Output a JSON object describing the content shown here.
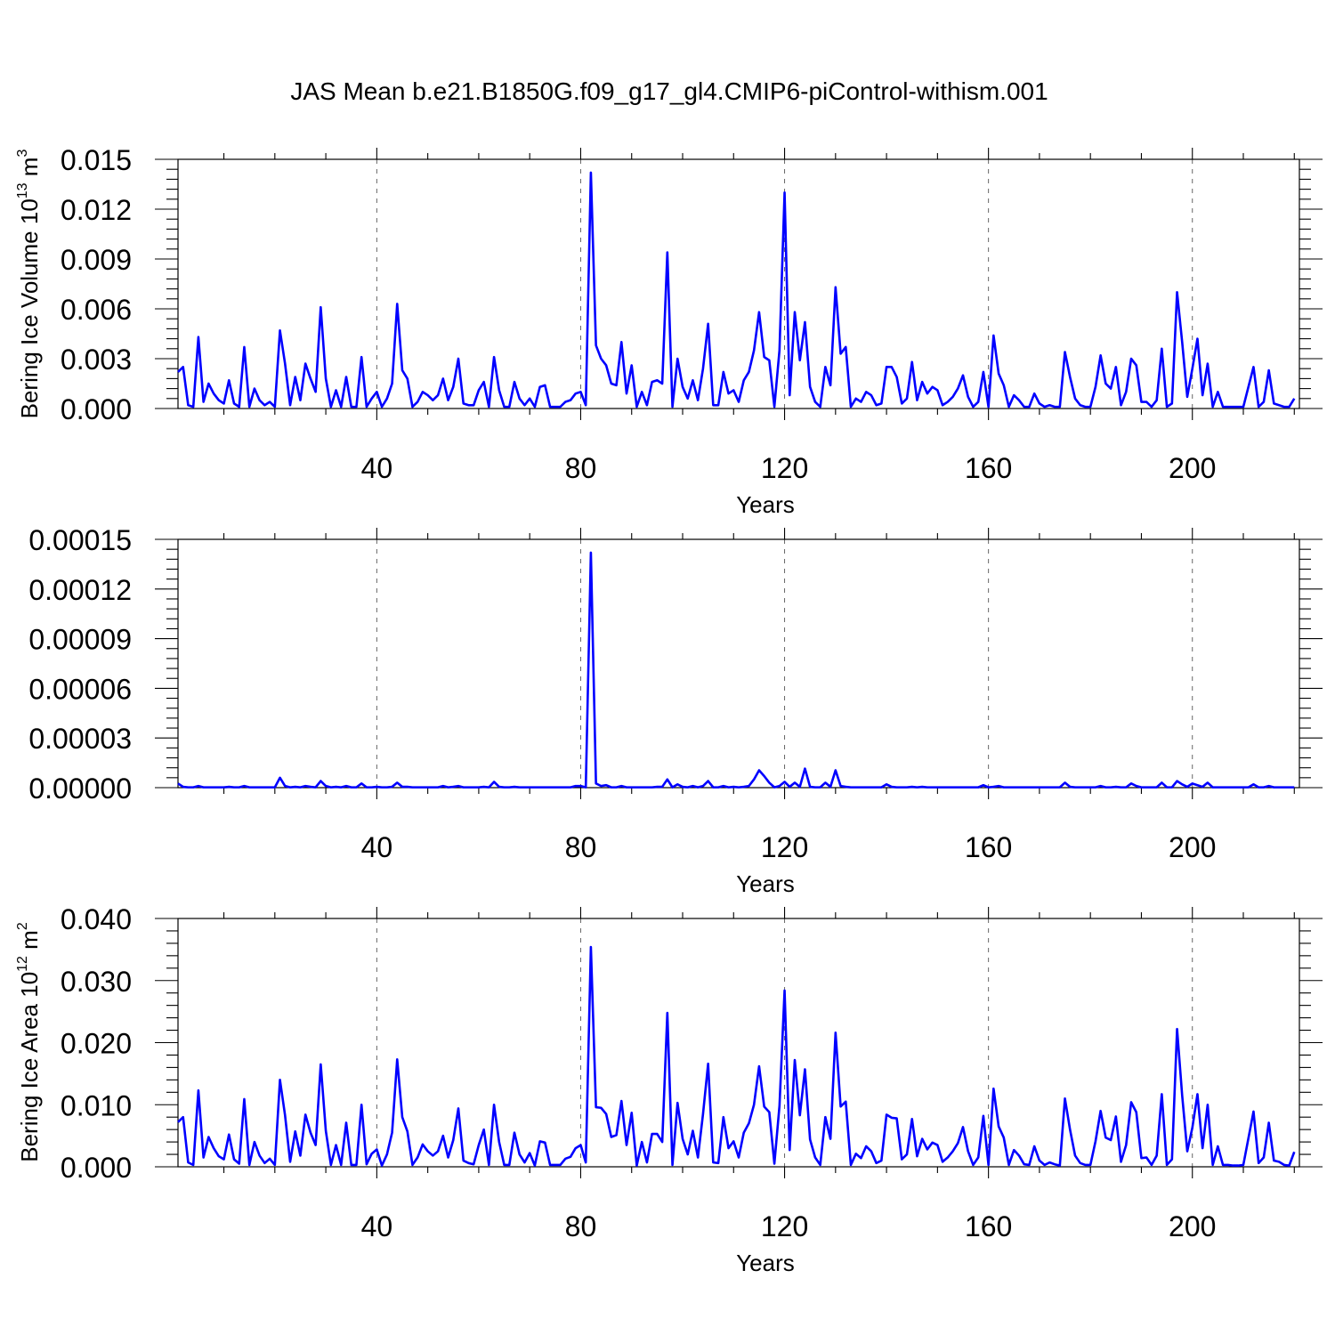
{
  "title": "JAS Mean b.e21.B1850G.f09_g17_gl4.CMIP6-piControl-withism.001",
  "colors": {
    "series": "#0000ff",
    "frame": "#000000",
    "grid": "#666666"
  },
  "chart_data": [
    {
      "type": "line",
      "xlabel": "Years",
      "ylabel": "Bering Ice Volume 10",
      "ylabel_sup": "13",
      "ylabel_unit": " m",
      "ylabel_unit_sup": "3",
      "xlim": [
        1,
        221
      ],
      "ylim": [
        0,
        0.015
      ],
      "xticks": [
        40,
        80,
        120,
        160,
        200
      ],
      "xtick_labels": [
        "40",
        "80",
        "120",
        "160",
        "200"
      ],
      "yticks": [
        0,
        0.003,
        0.006,
        0.009,
        0.012,
        0.015
      ],
      "ytick_labels": [
        "0.000",
        "0.003",
        "0.006",
        "0.009",
        "0.012",
        "0.015"
      ],
      "grid": "vertical dashed at x ticks",
      "x_start": 1,
      "values": [
        0.0022,
        0.0025,
        0.0002,
        0.0001,
        0.0043,
        0.0004,
        0.0015,
        0.0009,
        0.0005,
        0.0003,
        0.0017,
        0.0003,
        0.0001,
        0.0037,
        0.0001,
        0.0012,
        0.0005,
        0.0002,
        0.0004,
        0.0001,
        0.0047,
        0.0027,
        0.0002,
        0.0019,
        0.0005,
        0.0027,
        0.0018,
        0.001,
        0.0061,
        0.0018,
        0.0001,
        0.0011,
        0.0001,
        0.0019,
        0.0001,
        0.0001,
        0.0031,
        0.0001,
        0.0006,
        0.001,
        0.0001,
        0.0006,
        0.0015,
        0.0063,
        0.0023,
        0.0018,
        0.0001,
        0.0004,
        0.001,
        0.0008,
        0.0005,
        0.0008,
        0.0018,
        0.0005,
        0.0013,
        0.003,
        0.0003,
        0.0002,
        0.0002,
        0.0011,
        0.0016,
        0.0001,
        0.0031,
        0.0011,
        0.0001,
        0.0001,
        0.0016,
        0.0006,
        0.0002,
        0.0006,
        0.0001,
        0.0013,
        0.0014,
        0.0001,
        0.0001,
        0.0001,
        0.0004,
        0.0005,
        0.0009,
        0.001,
        0.0002,
        0.0142,
        0.0038,
        0.003,
        0.0026,
        0.0015,
        0.0014,
        0.004,
        0.0009,
        0.0026,
        0.0001,
        0.001,
        0.0002,
        0.0016,
        0.0017,
        0.0015,
        0.0094,
        0.0001,
        0.003,
        0.0013,
        0.0006,
        0.0017,
        0.0005,
        0.0024,
        0.0051,
        0.0002,
        0.0002,
        0.0022,
        0.0009,
        0.0011,
        0.0004,
        0.0017,
        0.0022,
        0.0035,
        0.0058,
        0.0031,
        0.0029,
        0.0001,
        0.0035,
        0.013,
        0.0008,
        0.0058,
        0.0029,
        0.0052,
        0.0013,
        0.0004,
        0.0001,
        0.0025,
        0.0014,
        0.0073,
        0.0033,
        0.0037,
        0.0001,
        0.0006,
        0.0004,
        0.001,
        0.0008,
        0.0002,
        0.0003,
        0.0025,
        0.0025,
        0.0019,
        0.0003,
        0.0006,
        0.0028,
        0.0005,
        0.0016,
        0.0009,
        0.0013,
        0.0011,
        0.0002,
        0.0004,
        0.0007,
        0.0012,
        0.002,
        0.0007,
        0.0001,
        0.0004,
        0.0022,
        0.0001,
        0.0044,
        0.0021,
        0.0014,
        0.0001,
        0.0008,
        0.0005,
        0.0001,
        0.0001,
        0.0009,
        0.0003,
        0.0001,
        0.0002,
        0.0001,
        0.0001,
        0.0034,
        0.0019,
        0.0006,
        0.0002,
        0.0001,
        0.0001,
        0.0013,
        0.0032,
        0.0015,
        0.0012,
        0.0025,
        0.0002,
        0.001,
        0.003,
        0.0026,
        0.0004,
        0.0004,
        0.0001,
        0.0005,
        0.0036,
        0.0001,
        0.0003,
        0.007,
        0.004,
        0.0007,
        0.0024,
        0.0042,
        0.0008,
        0.0027,
        0.0001,
        0.001,
        0.0001,
        0.0001,
        0.0001,
        0.0001,
        0.0001,
        0.0013,
        0.0025,
        0.0001,
        0.0004,
        0.0023,
        0.0003,
        0.0002,
        0.0001,
        0.0001,
        0.0006
      ]
    },
    {
      "type": "line",
      "xlabel": "Years",
      "ylabel": "",
      "xlim": [
        1,
        221
      ],
      "ylim": [
        0,
        0.00015
      ],
      "xticks": [
        40,
        80,
        120,
        160,
        200
      ],
      "xtick_labels": [
        "40",
        "80",
        "120",
        "160",
        "200"
      ],
      "yticks": [
        0,
        3e-05,
        6e-05,
        9e-05,
        0.00012,
        0.00015
      ],
      "ytick_labels": [
        "0.00000",
        "0.00003",
        "0.00006",
        "0.00009",
        "0.00012",
        "0.00015"
      ],
      "grid": "vertical dashed at x ticks",
      "x_start": 1,
      "values": [
        2.5e-06,
        5e-07,
        2e-07,
        2e-07,
        1e-06,
        2e-07,
        2e-07,
        2e-07,
        2e-07,
        2e-07,
        5e-07,
        2e-07,
        2e-07,
        1e-06,
        2e-07,
        2e-07,
        2e-07,
        2e-07,
        2e-07,
        2e-07,
        6e-06,
        1e-06,
        2e-07,
        5e-07,
        2e-07,
        1e-06,
        5e-07,
        2e-07,
        4e-06,
        1e-06,
        2e-07,
        5e-07,
        2e-07,
        1e-06,
        2e-07,
        2e-07,
        2.5e-06,
        2e-07,
        2e-07,
        5e-07,
        2e-07,
        2e-07,
        5e-07,
        3e-06,
        5e-07,
        5e-07,
        2e-07,
        2e-07,
        2e-07,
        2e-07,
        2e-07,
        2e-07,
        1e-06,
        2e-07,
        5e-07,
        1e-06,
        2e-07,
        2e-07,
        2e-07,
        2e-07,
        5e-07,
        2e-07,
        3.5e-06,
        5e-07,
        2e-07,
        2e-07,
        5e-07,
        2e-07,
        2e-07,
        2e-07,
        2e-07,
        2e-07,
        2e-07,
        2e-07,
        2e-07,
        2e-07,
        2e-07,
        2e-07,
        1e-06,
        1e-06,
        2e-07,
        0.000142,
        2.5e-06,
        1e-06,
        1.5e-06,
        2e-07,
        2e-07,
        1e-06,
        2e-07,
        2e-07,
        2e-07,
        2e-07,
        2e-07,
        2e-07,
        5e-07,
        5e-07,
        5e-06,
        2e-07,
        2e-06,
        5e-07,
        2e-07,
        1e-06,
        2e-07,
        1e-06,
        4e-06,
        2e-07,
        2e-07,
        1e-06,
        2e-07,
        5e-07,
        2e-07,
        5e-07,
        1e-06,
        5e-06,
        1.05e-05,
        7e-06,
        3e-06,
        2e-07,
        1e-06,
        3.5e-06,
        5e-07,
        3e-06,
        5e-07,
        1.15e-05,
        5e-07,
        2e-07,
        2e-07,
        3e-06,
        5e-07,
        1.05e-05,
        1e-06,
        5e-07,
        2e-07,
        2e-07,
        2e-07,
        2e-07,
        2e-07,
        2e-07,
        2e-07,
        2e-06,
        5e-07,
        2e-07,
        2e-07,
        2e-07,
        5e-07,
        2e-07,
        5e-07,
        2e-07,
        2e-07,
        2e-07,
        2e-07,
        2e-07,
        2e-07,
        2e-07,
        2e-07,
        2e-07,
        2e-07,
        2e-07,
        1.5e-06,
        2e-07,
        5e-07,
        1e-06,
        2e-07,
        2e-07,
        2e-07,
        2e-07,
        2e-07,
        2e-07,
        2e-07,
        2e-07,
        2e-07,
        2e-07,
        2e-07,
        2e-07,
        3e-06,
        5e-07,
        2e-07,
        2e-07,
        2e-07,
        2e-07,
        2e-07,
        1e-06,
        2e-07,
        2e-07,
        5e-07,
        2e-07,
        2e-07,
        2.5e-06,
        1e-06,
        2e-07,
        2e-07,
        2e-07,
        2e-07,
        3e-06,
        2e-07,
        2e-07,
        4e-06,
        2e-06,
        5e-07,
        2.5e-06,
        1.5e-06,
        5e-07,
        3e-06,
        2e-07,
        2e-07,
        2e-07,
        2e-07,
        2e-07,
        2e-07,
        2e-07,
        2e-07,
        2e-06,
        2e-07,
        2e-07,
        1e-06,
        2e-07,
        2e-07,
        2e-07,
        2e-07,
        2e-07
      ]
    },
    {
      "type": "line",
      "xlabel": "Years",
      "ylabel": "Bering Ice Area 10",
      "ylabel_sup": "12",
      "ylabel_unit": " m",
      "ylabel_unit_sup": "2",
      "xlim": [
        1,
        221
      ],
      "ylim": [
        0,
        0.04
      ],
      "xticks": [
        40,
        80,
        120,
        160,
        200
      ],
      "xtick_labels": [
        "40",
        "80",
        "120",
        "160",
        "200"
      ],
      "yticks": [
        0,
        0.01,
        0.02,
        0.03,
        0.04
      ],
      "ytick_labels": [
        "0.000",
        "0.010",
        "0.020",
        "0.030",
        "0.040"
      ],
      "grid": "vertical dashed at x ticks",
      "x_start": 1,
      "values": [
        0.0072,
        0.008,
        0.0007,
        0.0003,
        0.0123,
        0.0015,
        0.0048,
        0.003,
        0.0017,
        0.0012,
        0.0052,
        0.0012,
        0.0005,
        0.0109,
        0.0003,
        0.004,
        0.0018,
        0.0006,
        0.0013,
        0.0003,
        0.014,
        0.0083,
        0.0008,
        0.0057,
        0.0018,
        0.0084,
        0.0055,
        0.0035,
        0.0165,
        0.0058,
        0.0003,
        0.0035,
        0.0003,
        0.0071,
        0.0003,
        0.0003,
        0.01,
        0.0004,
        0.0021,
        0.0028,
        0.0002,
        0.002,
        0.0055,
        0.0173,
        0.008,
        0.0057,
        0.0003,
        0.0015,
        0.0036,
        0.0025,
        0.0018,
        0.0025,
        0.005,
        0.0015,
        0.0043,
        0.0094,
        0.001,
        0.0006,
        0.0004,
        0.0035,
        0.006,
        0.0003,
        0.01,
        0.004,
        0.0003,
        0.0003,
        0.0055,
        0.002,
        0.0007,
        0.0022,
        0.0002,
        0.0041,
        0.0039,
        0.0003,
        0.0003,
        0.0003,
        0.0013,
        0.0016,
        0.003,
        0.0035,
        0.0007,
        0.0354,
        0.0096,
        0.0095,
        0.0085,
        0.0048,
        0.0051,
        0.0106,
        0.0035,
        0.0087,
        0.0002,
        0.004,
        0.0007,
        0.0053,
        0.0053,
        0.004,
        0.0248,
        0.0003,
        0.0103,
        0.0045,
        0.002,
        0.0058,
        0.0015,
        0.0085,
        0.0166,
        0.0007,
        0.0006,
        0.008,
        0.003,
        0.0041,
        0.0015,
        0.0055,
        0.007,
        0.01,
        0.0162,
        0.0097,
        0.0088,
        0.0005,
        0.0098,
        0.0284,
        0.0027,
        0.0172,
        0.0083,
        0.0157,
        0.0044,
        0.0015,
        0.0003,
        0.008,
        0.0045,
        0.0216,
        0.0097,
        0.0105,
        0.0003,
        0.0021,
        0.0014,
        0.0033,
        0.0025,
        0.0006,
        0.001,
        0.0084,
        0.0079,
        0.0078,
        0.0012,
        0.002,
        0.0077,
        0.0017,
        0.0045,
        0.0028,
        0.0039,
        0.0035,
        0.0008,
        0.0015,
        0.0025,
        0.0038,
        0.0064,
        0.0025,
        0.0003,
        0.0015,
        0.0082,
        0.0003,
        0.0126,
        0.0065,
        0.0047,
        0.0003,
        0.0027,
        0.0018,
        0.0004,
        0.0003,
        0.0033,
        0.001,
        0.0003,
        0.0007,
        0.0004,
        0.0002,
        0.011,
        0.006,
        0.0018,
        0.0006,
        0.0003,
        0.0003,
        0.0041,
        0.009,
        0.0047,
        0.0043,
        0.0081,
        0.0008,
        0.0035,
        0.0104,
        0.0088,
        0.0014,
        0.0015,
        0.0003,
        0.0018,
        0.0117,
        0.0003,
        0.0012,
        0.0222,
        0.0115,
        0.0025,
        0.0063,
        0.0117,
        0.003,
        0.01,
        0.0003,
        0.0033,
        0.0003,
        0.0003,
        0.0002,
        0.0002,
        0.0003,
        0.0046,
        0.0089,
        0.0006,
        0.0015,
        0.0071,
        0.001,
        0.0008,
        0.0003,
        0.0002,
        0.0024
      ]
    }
  ]
}
